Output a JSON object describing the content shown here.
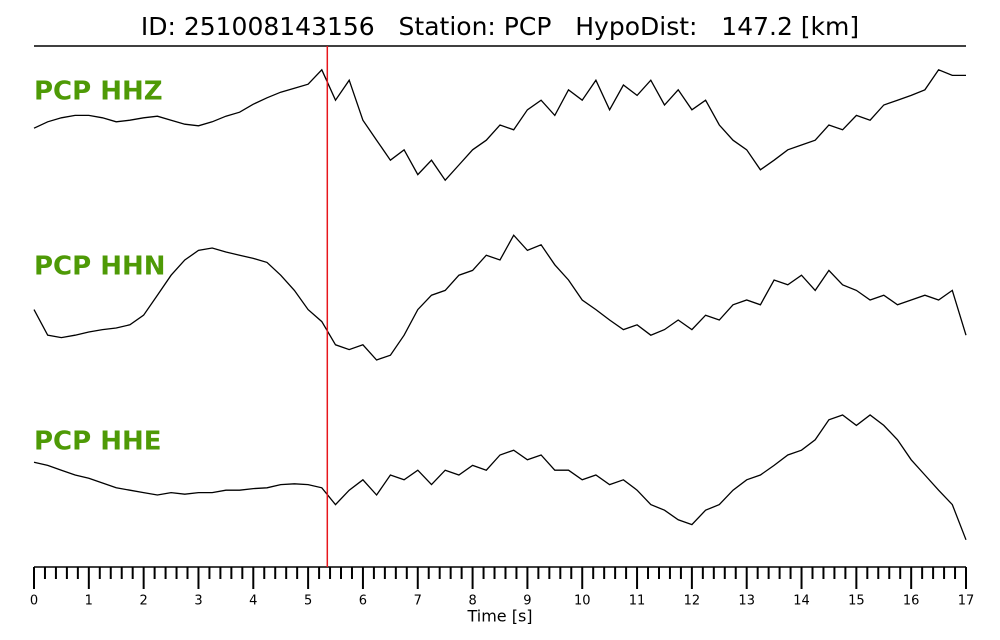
{
  "chart_data": {
    "type": "line",
    "title": "ID: 251008143156   Station: PCP   HypoDist:   147.2 [km]",
    "xlabel": "Time [s]",
    "xlim": [
      0,
      17
    ],
    "xticks": [
      0,
      1,
      2,
      3,
      4,
      5,
      6,
      7,
      8,
      9,
      10,
      11,
      12,
      13,
      14,
      15,
      16,
      17
    ],
    "xminor_per_major": 5,
    "ylim": [
      -1,
      1
    ],
    "pick_x": 5.35,
    "pick_color": "#e8161b",
    "label_color": "#4e9a06",
    "x": [
      0,
      0.25,
      0.5,
      0.75,
      1,
      1.25,
      1.5,
      1.75,
      2,
      2.25,
      2.5,
      2.75,
      3,
      3.25,
      3.5,
      3.75,
      4,
      4.25,
      4.5,
      4.75,
      5,
      5.25,
      5.5,
      5.75,
      6,
      6.25,
      6.5,
      6.75,
      7,
      7.25,
      7.5,
      7.75,
      8,
      8.25,
      8.5,
      8.75,
      9,
      9.25,
      9.5,
      9.75,
      10,
      10.25,
      10.5,
      10.75,
      11,
      11.25,
      11.5,
      11.75,
      12,
      12.25,
      12.5,
      12.75,
      13,
      13.25,
      13.5,
      13.75,
      14,
      14.25,
      14.5,
      14.75,
      15,
      15.25,
      15.5,
      15.75,
      16,
      16.25,
      16.5,
      16.75,
      17
    ],
    "series": [
      {
        "name": "PCP HHZ",
        "color": "#000000",
        "values": [
          -0.04,
          0.04,
          0.09,
          0.12,
          0.12,
          0.09,
          0.04,
          0.06,
          0.09,
          0.11,
          0.06,
          0.01,
          -0.01,
          0.04,
          0.11,
          0.16,
          0.26,
          0.34,
          0.41,
          0.46,
          0.51,
          0.69,
          0.31,
          0.56,
          0.06,
          -0.19,
          -0.44,
          -0.31,
          -0.62,
          -0.44,
          -0.69,
          -0.5,
          -0.31,
          -0.19,
          0,
          -0.06,
          0.19,
          0.31,
          0.12,
          0.44,
          0.31,
          0.56,
          0.19,
          0.5,
          0.37,
          0.56,
          0.25,
          0.44,
          0.19,
          0.31,
          0,
          -0.19,
          -0.31,
          -0.56,
          -0.44,
          -0.31,
          -0.25,
          -0.19,
          0,
          -0.06,
          0.12,
          0.06,
          0.25,
          0.31,
          0.37,
          0.44,
          0.69,
          0.62,
          0.62
        ]
      },
      {
        "name": "PCP HHN",
        "color": "#000000",
        "values": [
          -0.12,
          -0.44,
          -0.47,
          -0.44,
          -0.4,
          -0.37,
          -0.35,
          -0.31,
          -0.19,
          0.06,
          0.31,
          0.5,
          0.62,
          0.65,
          0.6,
          0.56,
          0.52,
          0.47,
          0.31,
          0.12,
          -0.12,
          -0.27,
          -0.56,
          -0.62,
          -0.56,
          -0.75,
          -0.69,
          -0.44,
          -0.12,
          0.06,
          0.12,
          0.31,
          0.37,
          0.56,
          0.5,
          0.81,
          0.62,
          0.69,
          0.44,
          0.25,
          0,
          -0.12,
          -0.25,
          -0.37,
          -0.31,
          -0.44,
          -0.37,
          -0.25,
          -0.37,
          -0.19,
          -0.25,
          -0.06,
          0,
          -0.06,
          0.25,
          0.19,
          0.31,
          0.12,
          0.37,
          0.19,
          0.12,
          0,
          0.06,
          -0.06,
          0,
          0.06,
          0,
          0.12,
          -0.44
        ]
      },
      {
        "name": "PCP HHE",
        "color": "#000000",
        "values": [
          0.16,
          0.12,
          0.06,
          0,
          -0.04,
          -0.1,
          -0.16,
          -0.19,
          -0.22,
          -0.25,
          -0.22,
          -0.24,
          -0.22,
          -0.22,
          -0.19,
          -0.19,
          -0.17,
          -0.16,
          -0.12,
          -0.11,
          -0.12,
          -0.16,
          -0.37,
          -0.19,
          -0.06,
          -0.25,
          0,
          -0.06,
          0.06,
          -0.12,
          0.06,
          0,
          0.12,
          0.06,
          0.25,
          0.31,
          0.19,
          0.25,
          0.06,
          0.06,
          -0.06,
          0,
          -0.12,
          -0.06,
          -0.19,
          -0.37,
          -0.44,
          -0.56,
          -0.62,
          -0.44,
          -0.37,
          -0.19,
          -0.06,
          0,
          0.12,
          0.25,
          0.31,
          0.44,
          0.69,
          0.75,
          0.62,
          0.75,
          0.62,
          0.44,
          0.19,
          0,
          -0.19,
          -0.37,
          -0.81
        ]
      }
    ]
  }
}
